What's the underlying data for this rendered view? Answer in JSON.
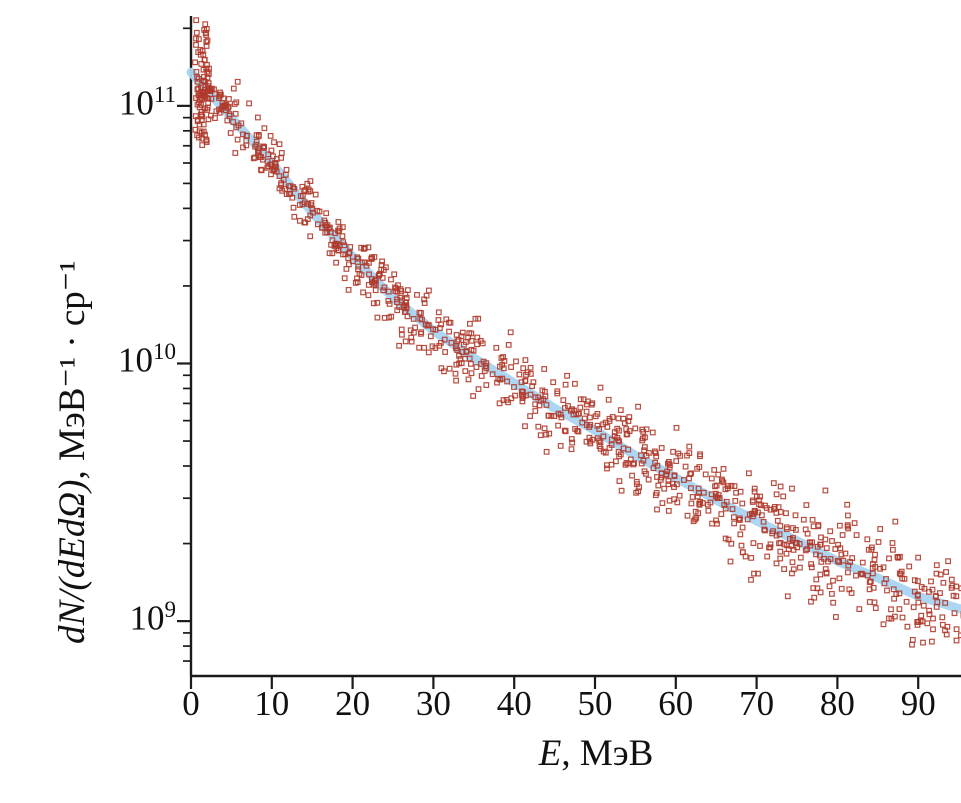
{
  "chart_data": {
    "type": "scatter",
    "title": "",
    "xlabel_math": "E",
    "xlabel_unit": ", МэВ",
    "ylabel_math": "dN/(dEdΩ)",
    "ylabel_unit": ", МэВ⁻¹ · ср⁻¹",
    "x_scale": "linear",
    "y_scale": "log",
    "xlim": [
      0,
      100
    ],
    "ylim_log10": [
      8.787,
      11.341
    ],
    "x_ticks": [
      0,
      10,
      20,
      30,
      40,
      50,
      60,
      70,
      80,
      90
    ],
    "y_ticks": [
      {
        "base": "10",
        "exp": "9"
      },
      {
        "base": "10",
        "exp": "10"
      },
      {
        "base": "10",
        "exp": "11"
      }
    ],
    "grid": false,
    "legend": "none",
    "axis_color": "#1a1a1a",
    "fit_curve": {
      "name": "smooth-fit-line",
      "color": "#a8d4f0",
      "width": 9,
      "x": [
        0,
        5,
        10,
        15,
        20,
        25,
        30,
        35,
        40,
        45,
        50,
        55,
        60,
        65,
        70,
        75,
        80,
        85,
        90,
        95,
        100
      ],
      "y": [
        135000000000.0,
        90000000000.0,
        60000000000.0,
        38500000000.0,
        26000000000.0,
        18000000000.0,
        13400000000.0,
        10500000000.0,
        8400000000.0,
        6700000000.0,
        5500000000.0,
        4400000000.0,
        3600000000.0,
        2950000000.0,
        2450000000.0,
        2050000000.0,
        1710000000.0,
        1470000000.0,
        1250000000.0,
        1120000000.0,
        1030000000.0
      ]
    },
    "scatter": {
      "name": "measured-spectrum-points",
      "marker": "open-square",
      "marker_size_px": 4.6,
      "color": "#b03a2b",
      "n_points": 1000,
      "x_range": [
        0.5,
        99
      ],
      "noise_sigma_log10": [
        0.045,
        0.105
      ],
      "low_energy_spike": {
        "x_range": [
          0.5,
          2.2
        ],
        "y_range": [
          70000000000.0,
          225000000000.0
        ],
        "n_points": 80
      }
    }
  }
}
